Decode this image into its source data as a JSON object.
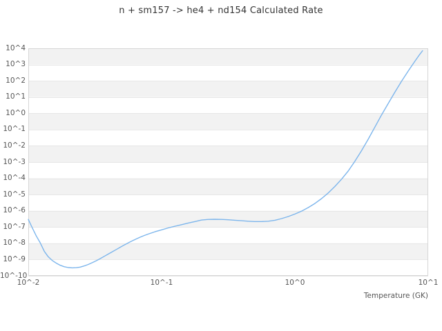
{
  "chart_data": {
    "type": "line",
    "title": "n + sm157 -> he4 + nd154 Calculated Rate",
    "xlabel": "Temperature (GK)",
    "ylabel": "",
    "x_scale": "log10",
    "y_scale": "log10",
    "xlim_log10": [
      -2,
      1
    ],
    "ylim_log10": [
      -10,
      4
    ],
    "grid": "horizontal-bands-alternating",
    "legend_position": "none",
    "x_tick_labels": [
      "10^-2",
      "10^-1",
      "10^0",
      "10^1"
    ],
    "x_tick_log10": [
      -2,
      -1,
      0,
      1
    ],
    "y_tick_labels": [
      "10^4",
      "10^3",
      "10^2",
      "10^1",
      "10^0",
      "10^-1",
      "10^-2",
      "10^-3",
      "10^-4",
      "10^-5",
      "10^-6",
      "10^-7",
      "10^-8",
      "10^-9",
      "10^-10"
    ],
    "y_tick_log10": [
      4,
      3,
      2,
      1,
      0,
      -1,
      -2,
      -3,
      -4,
      -5,
      -6,
      -7,
      -8,
      -9,
      -10
    ],
    "colors": {
      "line": "#7cb5ec",
      "band": "#f2f2f2",
      "gridline": "#e6e6e6",
      "border": "#d6d6d6",
      "title_text": "#333333",
      "tick_text": "#555555"
    },
    "series": [
      {
        "name": "Calculated Rate",
        "points_log10": [
          [
            -2.0,
            -6.53
          ],
          [
            -1.97,
            -7.05
          ],
          [
            -1.94,
            -7.55
          ],
          [
            -1.91,
            -7.98
          ],
          [
            -1.88,
            -8.5
          ],
          [
            -1.85,
            -8.83
          ],
          [
            -1.82,
            -9.06
          ],
          [
            -1.79,
            -9.22
          ],
          [
            -1.76,
            -9.35
          ],
          [
            -1.73,
            -9.44
          ],
          [
            -1.7,
            -9.49
          ],
          [
            -1.67,
            -9.51
          ],
          [
            -1.64,
            -9.5
          ],
          [
            -1.61,
            -9.46
          ],
          [
            -1.58,
            -9.39
          ],
          [
            -1.55,
            -9.3
          ],
          [
            -1.52,
            -9.19
          ],
          [
            -1.49,
            -9.07
          ],
          [
            -1.46,
            -8.94
          ],
          [
            -1.43,
            -8.8
          ],
          [
            -1.4,
            -8.66
          ],
          [
            -1.37,
            -8.52
          ],
          [
            -1.34,
            -8.38
          ],
          [
            -1.31,
            -8.24
          ],
          [
            -1.28,
            -8.1
          ],
          [
            -1.25,
            -7.97
          ],
          [
            -1.22,
            -7.85
          ],
          [
            -1.19,
            -7.73
          ],
          [
            -1.16,
            -7.62
          ],
          [
            -1.13,
            -7.52
          ],
          [
            -1.1,
            -7.43
          ],
          [
            -1.05,
            -7.29
          ],
          [
            -1.0,
            -7.17
          ],
          [
            -0.95,
            -7.05
          ],
          [
            -0.9,
            -6.95
          ],
          [
            -0.85,
            -6.85
          ],
          [
            -0.8,
            -6.75
          ],
          [
            -0.75,
            -6.66
          ],
          [
            -0.7,
            -6.57
          ],
          [
            -0.65,
            -6.53
          ],
          [
            -0.6,
            -6.52
          ],
          [
            -0.55,
            -6.53
          ],
          [
            -0.5,
            -6.55
          ],
          [
            -0.45,
            -6.58
          ],
          [
            -0.4,
            -6.61
          ],
          [
            -0.35,
            -6.64
          ],
          [
            -0.3,
            -6.66
          ],
          [
            -0.25,
            -6.66
          ],
          [
            -0.2,
            -6.64
          ],
          [
            -0.15,
            -6.58
          ],
          [
            -0.1,
            -6.48
          ],
          [
            -0.05,
            -6.35
          ],
          [
            0.0,
            -6.2
          ],
          [
            0.05,
            -6.02
          ],
          [
            0.1,
            -5.8
          ],
          [
            0.15,
            -5.55
          ],
          [
            0.2,
            -5.25
          ],
          [
            0.25,
            -4.9
          ],
          [
            0.3,
            -4.5
          ],
          [
            0.35,
            -4.05
          ],
          [
            0.4,
            -3.55
          ],
          [
            0.45,
            -2.95
          ],
          [
            0.5,
            -2.3
          ],
          [
            0.55,
            -1.6
          ],
          [
            0.6,
            -0.85
          ],
          [
            0.65,
            -0.1
          ],
          [
            0.7,
            0.6
          ],
          [
            0.75,
            1.3
          ],
          [
            0.8,
            1.97
          ],
          [
            0.85,
            2.6
          ],
          [
            0.9,
            3.2
          ],
          [
            0.93,
            3.55
          ],
          [
            0.958,
            3.85
          ]
        ]
      }
    ]
  }
}
